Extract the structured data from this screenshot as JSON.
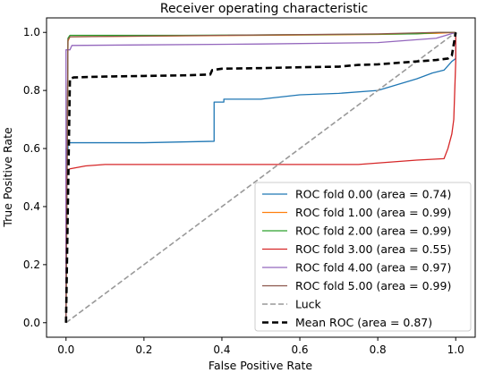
{
  "chart_data": {
    "type": "line",
    "title": "Receiver operating characteristic",
    "xlabel": "False Positive Rate",
    "ylabel": "True Positive Rate",
    "xlim": [
      -0.05,
      1.05
    ],
    "ylim": [
      -0.05,
      1.05
    ],
    "xticks": [
      "0.0",
      "0.2",
      "0.4",
      "0.6",
      "0.8",
      "1.0"
    ],
    "yticks": [
      "0.0",
      "0.2",
      "0.4",
      "0.6",
      "0.8",
      "1.0"
    ],
    "grid": false,
    "legend_position": "lower-right",
    "series": [
      {
        "name": "ROC fold 0.00 (area = 0.74)",
        "color": "#1f77b4",
        "dash": "solid",
        "x": [
          0,
          0,
          0.005,
          0.005,
          0.2,
          0.38,
          0.38,
          0.4,
          0.405,
          0.405,
          0.5,
          0.6,
          0.7,
          0.8,
          0.85,
          0.9,
          0.94,
          0.97,
          0.99,
          1.0,
          1.0
        ],
        "y": [
          0,
          0.6,
          0.6,
          0.62,
          0.62,
          0.625,
          0.76,
          0.76,
          0.76,
          0.77,
          0.77,
          0.785,
          0.79,
          0.8,
          0.82,
          0.84,
          0.86,
          0.87,
          0.9,
          0.91,
          1.0
        ]
      },
      {
        "name": "ROC fold 1.00 (area = 0.99)",
        "color": "#ff7f0e",
        "dash": "solid",
        "x": [
          0,
          0.005,
          0.01,
          0.2,
          0.5,
          0.8,
          0.95,
          1.0
        ],
        "y": [
          0,
          0.97,
          0.985,
          0.987,
          0.99,
          0.993,
          0.997,
          1.0
        ]
      },
      {
        "name": "ROC fold 2.00 (area = 0.99)",
        "color": "#2ca02c",
        "dash": "solid",
        "x": [
          0,
          0.005,
          0.01,
          0.3,
          0.6,
          0.9,
          0.96,
          1.0
        ],
        "y": [
          0,
          0.98,
          0.99,
          0.99,
          0.992,
          0.995,
          1.0,
          1.0
        ]
      },
      {
        "name": "ROC fold 3.00 (area = 0.55)",
        "color": "#d62728",
        "dash": "solid",
        "x": [
          0,
          0,
          0.005,
          0.01,
          0.05,
          0.1,
          0.2,
          0.4,
          0.6,
          0.75,
          0.8,
          0.9,
          0.97,
          0.98,
          0.99,
          0.995,
          1.0,
          1.0
        ],
        "y": [
          0,
          0.52,
          0.525,
          0.53,
          0.54,
          0.545,
          0.545,
          0.545,
          0.545,
          0.545,
          0.55,
          0.56,
          0.565,
          0.6,
          0.65,
          0.7,
          0.9,
          1.0
        ]
      },
      {
        "name": "ROC fold 4.00 (area = 0.97)",
        "color": "#9467bd",
        "dash": "solid",
        "x": [
          0,
          0,
          0.01,
          0.015,
          0.2,
          0.5,
          0.8,
          0.95,
          1.0
        ],
        "y": [
          0,
          0.94,
          0.94,
          0.955,
          0.957,
          0.96,
          0.965,
          0.98,
          1.0
        ]
      },
      {
        "name": "ROC fold 5.00 (area = 0.99)",
        "color": "#8c564b",
        "dash": "solid",
        "x": [
          0,
          0.005,
          0.01,
          0.4,
          0.8,
          0.95,
          1.0
        ],
        "y": [
          0,
          0.975,
          0.985,
          0.99,
          0.995,
          1.0,
          1.0
        ]
      },
      {
        "name": "Luck",
        "color": "#999999",
        "dash": "dashed",
        "x": [
          0,
          1
        ],
        "y": [
          0,
          1
        ]
      },
      {
        "name": "Mean ROC (area = 0.87)",
        "color": "#000000",
        "dash": "dashed-bold",
        "x": [
          0,
          0.01,
          0.02,
          0.1,
          0.2,
          0.3,
          0.37,
          0.375,
          0.4,
          0.5,
          0.6,
          0.7,
          0.75,
          0.8,
          0.85,
          0.9,
          0.95,
          0.98,
          0.99,
          1.0
        ],
        "y": [
          0,
          0.84,
          0.845,
          0.848,
          0.85,
          0.852,
          0.855,
          0.87,
          0.875,
          0.877,
          0.88,
          0.882,
          0.888,
          0.89,
          0.895,
          0.9,
          0.905,
          0.91,
          0.92,
          1.0
        ]
      }
    ]
  }
}
